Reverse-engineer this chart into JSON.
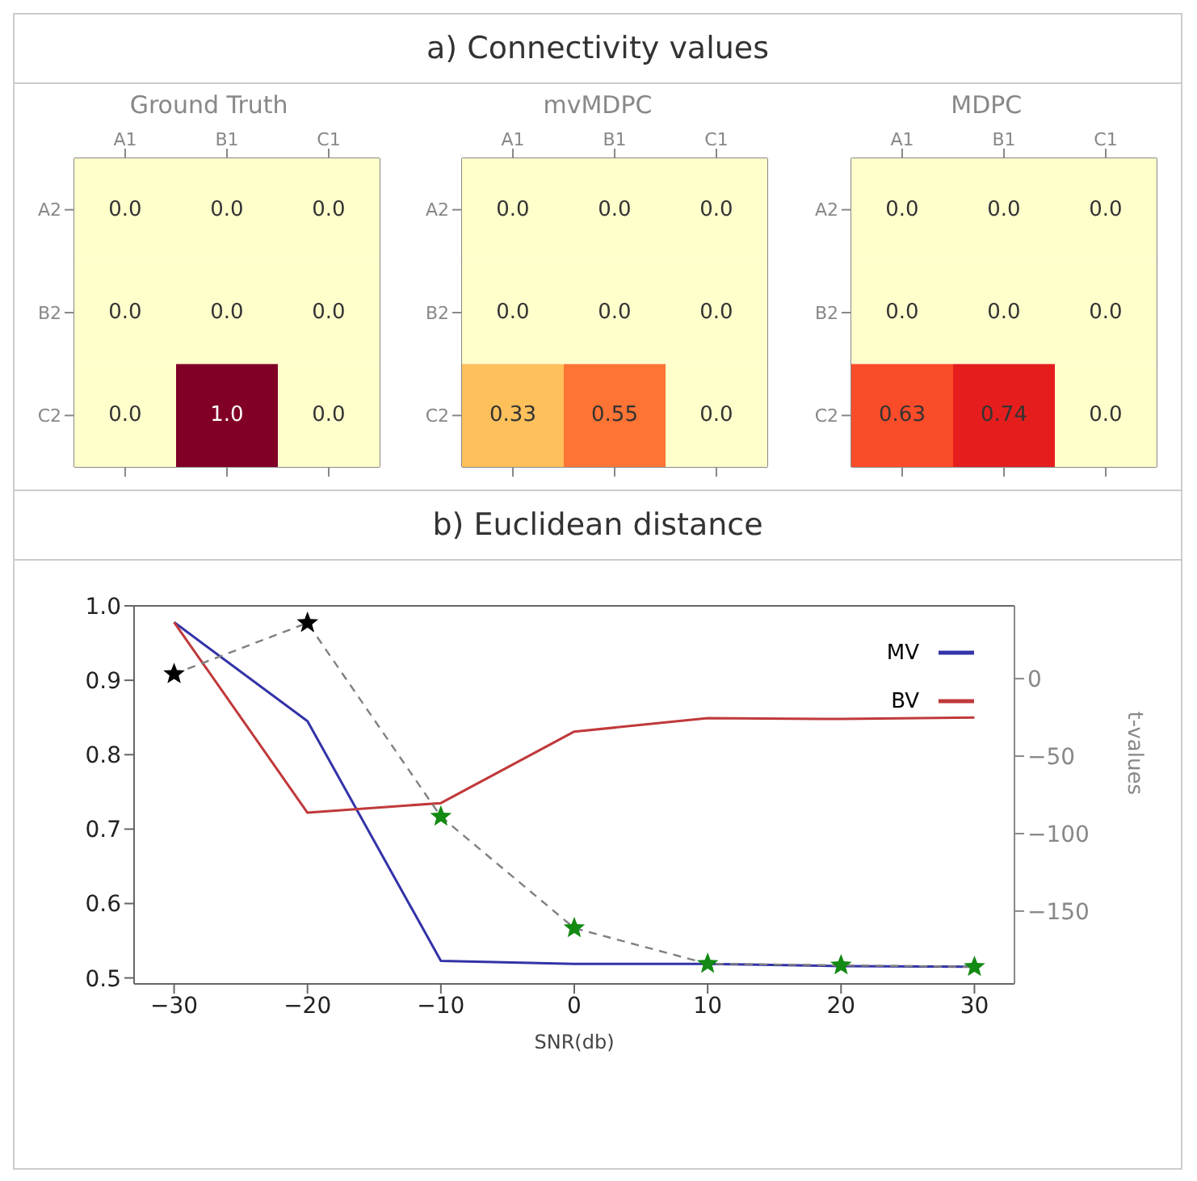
{
  "chart_data": [
    {
      "type": "heatmap",
      "title": "Ground Truth",
      "annotations": [
        "a) Connectivity values"
      ],
      "categories": [
        "A1",
        "B1",
        "C1"
      ],
      "y_categories": [
        "A2",
        "B2",
        "C2"
      ],
      "cells": [
        [
          0,
          0,
          0
        ],
        [
          0,
          0,
          0
        ],
        [
          0,
          1,
          0
        ]
      ],
      "cell_labels": [
        [
          "0.0",
          "0.0",
          "0.0"
        ],
        [
          "0.0",
          "0.0",
          "0.0"
        ],
        [
          "0.0",
          "1.0",
          "0.0"
        ]
      ]
    },
    {
      "type": "heatmap",
      "title": "mvMDPC",
      "categories": [
        "A1",
        "B1",
        "C1"
      ],
      "y_categories": [
        "A2",
        "B2",
        "C2"
      ],
      "cells": [
        [
          0,
          0,
          0
        ],
        [
          0,
          0,
          0
        ],
        [
          0.33,
          0.55,
          0
        ]
      ],
      "cell_labels": [
        [
          "0.0",
          "0.0",
          "0.0"
        ],
        [
          "0.0",
          "0.0",
          "0.0"
        ],
        [
          "0.33",
          "0.55",
          "0.0"
        ]
      ]
    },
    {
      "type": "heatmap",
      "title": "MDPC",
      "categories": [
        "A1",
        "B1",
        "C1"
      ],
      "y_categories": [
        "A2",
        "B2",
        "C2"
      ],
      "cells": [
        [
          0,
          0,
          0
        ],
        [
          0,
          0,
          0
        ],
        [
          0.63,
          0.74,
          0
        ]
      ],
      "cell_labels": [
        [
          "0.0",
          "0.0",
          "0.0"
        ],
        [
          "0.0",
          "0.0",
          "0.0"
        ],
        [
          "0.63",
          "0.74",
          "0.0"
        ]
      ]
    },
    {
      "type": "line",
      "title": "b) Euclidean distance",
      "xlabel": "SNR(db)",
      "y2label": "t-values",
      "x": [
        -30,
        -20,
        -10,
        0,
        10,
        20,
        30
      ],
      "series": [
        {
          "name": "MV",
          "color": "#3333a8",
          "values": [
            0.978,
            0.845,
            0.523,
            0.519,
            0.519,
            0.516,
            0.515
          ],
          "marker": "none"
        },
        {
          "name": "BV",
          "color": "#c0393b",
          "values": [
            0.978,
            0.722,
            0.735,
            0.831,
            0.849,
            0.848,
            0.85
          ],
          "marker": "none"
        },
        {
          "color": "#808080",
          "axis": "y2",
          "line_style": "dashed",
          "marker": "star",
          "colors": [
            "#000000",
            "#000000",
            "#138a13",
            "#138a13",
            "#138a13",
            "#138a13",
            "#138a13"
          ],
          "values": [
            3,
            36,
            -89,
            -161,
            -184,
            -185,
            -186
          ]
        }
      ],
      "xlim": [
        -33,
        33
      ],
      "xticks": [
        {
          "value": -30,
          "label": "−30"
        },
        {
          "value": -20,
          "label": "−20"
        },
        {
          "value": -10,
          "label": "−10"
        },
        0,
        10,
        20,
        30
      ],
      "ylim": [
        0.492,
        1.0
      ],
      "yticks": [
        0.5,
        0.6,
        0.7,
        0.8,
        0.9,
        {
          "value": 1.0,
          "label": "1.0"
        }
      ],
      "y2lim": [
        -197,
        47
      ],
      "y2ticks": [
        0,
        {
          "value": -50,
          "label": "−50"
        },
        {
          "value": -100,
          "label": "−100"
        },
        {
          "value": -150,
          "label": "−150"
        }
      ],
      "grid": false,
      "legend": "top right"
    }
  ]
}
